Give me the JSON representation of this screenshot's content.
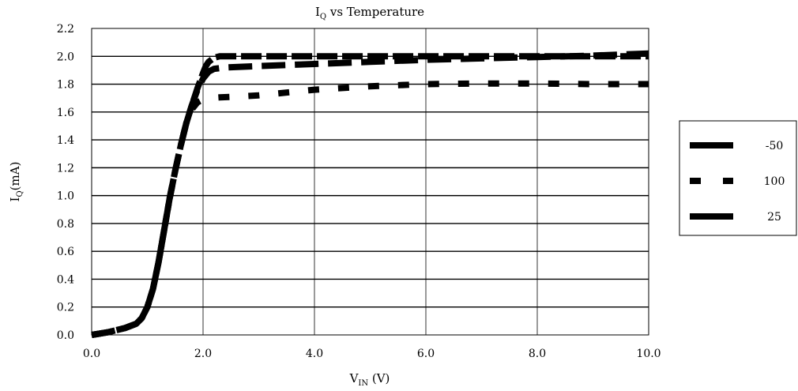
{
  "chart_data": {
    "type": "line",
    "title": {
      "main": "I",
      "sub": "Q",
      "rest": " vs Temperature"
    },
    "xlabel": {
      "main": "V",
      "sub": "IN",
      "rest": " (V)"
    },
    "ylabel": {
      "main": "I",
      "sub": "Q",
      "rest": "(mA)"
    },
    "xlim": [
      0,
      10
    ],
    "ylim": [
      0,
      2.2
    ],
    "x_ticks": [
      "0.0",
      "2.0",
      "4.0",
      "6.0",
      "8.0",
      "10.0"
    ],
    "y_ticks": [
      "0.0",
      "0.2",
      "0.4",
      "0.6",
      "0.8",
      "1.0",
      "1.2",
      "1.4",
      "1.6",
      "1.8",
      "2.0",
      "2.2"
    ],
    "grid": true,
    "legend_position": "right",
    "series": [
      {
        "name": "-50",
        "x": [
          0,
          0.3,
          0.6,
          0.8,
          0.9,
          1.0,
          1.1,
          1.2,
          1.3,
          1.4,
          1.5,
          1.6,
          1.7,
          1.8,
          1.9,
          2.0,
          2.05,
          2.1,
          2.2,
          2.3,
          2.5,
          3.0,
          4.0,
          5.0,
          6.0,
          7.0,
          8.0,
          9.0,
          10.0
        ],
        "y": [
          0,
          0.02,
          0.05,
          0.08,
          0.12,
          0.2,
          0.33,
          0.52,
          0.75,
          0.98,
          1.18,
          1.36,
          1.52,
          1.65,
          1.77,
          1.88,
          1.93,
          1.96,
          1.99,
          2.0,
          2.0,
          2.0,
          2.0,
          2.0,
          2.0,
          2.0,
          2.0,
          2.0,
          2.0
        ],
        "style": "dash-long"
      },
      {
        "name": "100",
        "x": [
          0,
          0.3,
          0.6,
          0.8,
          0.9,
          1.0,
          1.1,
          1.2,
          1.3,
          1.4,
          1.5,
          1.6,
          1.7,
          1.8,
          1.9,
          2.0,
          2.1,
          2.3,
          2.6,
          3.0,
          4.0,
          5.0,
          6.0,
          7.0,
          8.0,
          9.0,
          10.0
        ],
        "y": [
          0,
          0.02,
          0.05,
          0.08,
          0.12,
          0.2,
          0.33,
          0.52,
          0.75,
          0.98,
          1.18,
          1.36,
          1.52,
          1.62,
          1.67,
          1.69,
          1.7,
          1.705,
          1.71,
          1.72,
          1.76,
          1.785,
          1.8,
          1.805,
          1.805,
          1.8,
          1.8
        ],
        "style": "dash-short"
      },
      {
        "name": "25",
        "x": [
          0,
          0.3,
          0.6,
          0.8,
          0.9,
          1.0,
          1.1,
          1.2,
          1.3,
          1.4,
          1.5,
          1.6,
          1.7,
          1.8,
          1.9,
          2.0,
          2.1,
          2.2,
          2.4,
          3.0,
          4.0,
          5.0,
          6.0,
          7.0,
          8.0,
          9.0,
          10.0
        ],
        "y": [
          0,
          0.02,
          0.05,
          0.08,
          0.12,
          0.2,
          0.33,
          0.52,
          0.75,
          0.98,
          1.18,
          1.36,
          1.52,
          1.65,
          1.76,
          1.84,
          1.89,
          1.91,
          1.92,
          1.93,
          1.945,
          1.96,
          1.975,
          1.985,
          1.995,
          2.005,
          2.02
        ],
        "style": "dash-mid"
      }
    ]
  }
}
